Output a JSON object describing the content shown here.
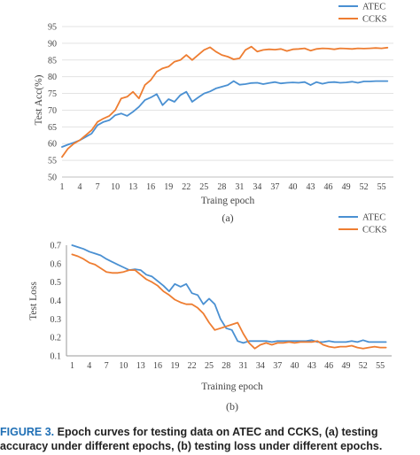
{
  "chart_data": [
    {
      "type": "line",
      "panel_label": "(a)",
      "title": "",
      "xlabel": "Traing epoch",
      "ylabel": "Test Acc(%)",
      "xlim": [
        1,
        57
      ],
      "ylim": [
        50,
        95
      ],
      "y_ticks": [
        50,
        55,
        60,
        65,
        70,
        75,
        80,
        85,
        90,
        95
      ],
      "x_ticks": [
        1,
        4,
        7,
        10,
        13,
        16,
        19,
        22,
        25,
        28,
        31,
        34,
        37,
        40,
        43,
        46,
        49,
        52,
        55
      ],
      "grid": "horizontal",
      "legend": "top-right",
      "series": [
        {
          "name": "ATEC",
          "color": "#4a90d2",
          "values": [
            59,
            59.7,
            60.3,
            61,
            62,
            63,
            65.5,
            66.5,
            67,
            68.5,
            69,
            68.3,
            69.5,
            71,
            73,
            73.8,
            74.8,
            71.5,
            73.3,
            72.5,
            74.5,
            75.5,
            72.5,
            73.8,
            75,
            75.6,
            76.5,
            77,
            77.5,
            78.7,
            77.6,
            77.8,
            78.1,
            78.2,
            77.8,
            78.1,
            78.4,
            78,
            78.2,
            78.3,
            78.2,
            78.4,
            77.5,
            78.4,
            77.9,
            78.3,
            78.4,
            78.2,
            78.3,
            78.5,
            78.2,
            78.6,
            78.6,
            78.7,
            78.7,
            78.7
          ]
        },
        {
          "name": "CCKS",
          "color": "#ee7d31",
          "values": [
            56,
            58.5,
            60,
            61,
            62.5,
            64,
            66.5,
            67.5,
            68.3,
            70,
            73.5,
            74,
            75.5,
            73.5,
            77.5,
            79,
            81.5,
            82.5,
            83,
            84.5,
            85,
            86.5,
            85,
            86.5,
            88,
            88.8,
            87.5,
            86.5,
            86,
            85.2,
            85.5,
            88,
            89,
            87.5,
            88,
            88.2,
            88.1,
            88.3,
            87.7,
            88.2,
            88.3,
            88.5,
            87.8,
            88.3,
            88.5,
            88.4,
            88.2,
            88.5,
            88.4,
            88.3,
            88.5,
            88.4,
            88.5,
            88.6,
            88.5,
            88.7
          ]
        }
      ]
    },
    {
      "type": "line",
      "panel_label": "(b)",
      "title": "",
      "xlabel": "Training  epoch",
      "ylabel": "Test Loss",
      "xlim": [
        0,
        57
      ],
      "ylim": [
        0.1,
        0.7
      ],
      "y_ticks": [
        0.1,
        0.2,
        0.3,
        0.4,
        0.5,
        0.6,
        0.7
      ],
      "x_ticks": [
        1,
        4,
        7,
        10,
        13,
        16,
        19,
        22,
        25,
        28,
        31,
        34,
        37,
        40,
        43,
        46,
        49,
        52,
        55
      ],
      "grid": "none",
      "legend": "top-right",
      "series": [
        {
          "name": "ATEC",
          "color": "#4a90d2",
          "values": [
            0.7,
            0.69,
            0.68,
            0.665,
            0.655,
            0.645,
            0.625,
            0.61,
            0.595,
            0.58,
            0.565,
            0.57,
            0.565,
            0.54,
            0.53,
            0.505,
            0.48,
            0.45,
            0.49,
            0.475,
            0.49,
            0.44,
            0.43,
            0.38,
            0.41,
            0.38,
            0.3,
            0.25,
            0.24,
            0.18,
            0.17,
            0.18,
            0.18,
            0.18,
            0.18,
            0.175,
            0.18,
            0.18,
            0.18,
            0.18,
            0.18,
            0.18,
            0.185,
            0.175,
            0.175,
            0.18,
            0.175,
            0.175,
            0.175,
            0.18,
            0.175,
            0.185,
            0.175,
            0.175,
            0.175,
            0.175
          ]
        },
        {
          "name": "CCKS",
          "color": "#ee7d31",
          "values": [
            0.65,
            0.64,
            0.625,
            0.605,
            0.595,
            0.575,
            0.555,
            0.55,
            0.55,
            0.555,
            0.565,
            0.565,
            0.54,
            0.515,
            0.5,
            0.48,
            0.45,
            0.43,
            0.405,
            0.39,
            0.38,
            0.38,
            0.36,
            0.33,
            0.28,
            0.24,
            0.25,
            0.26,
            0.27,
            0.28,
            0.22,
            0.17,
            0.14,
            0.16,
            0.17,
            0.16,
            0.17,
            0.17,
            0.175,
            0.17,
            0.175,
            0.175,
            0.175,
            0.18,
            0.16,
            0.15,
            0.145,
            0.15,
            0.15,
            0.155,
            0.145,
            0.14,
            0.145,
            0.15,
            0.145,
            0.145
          ]
        }
      ]
    }
  ],
  "caption": {
    "label": "FIGURE 3.",
    "line1": "Epoch curves for testing data on ATEC and CCKS, (a) testing",
    "line2": "accuracy under different epochs, (b) testing loss under different epochs."
  }
}
